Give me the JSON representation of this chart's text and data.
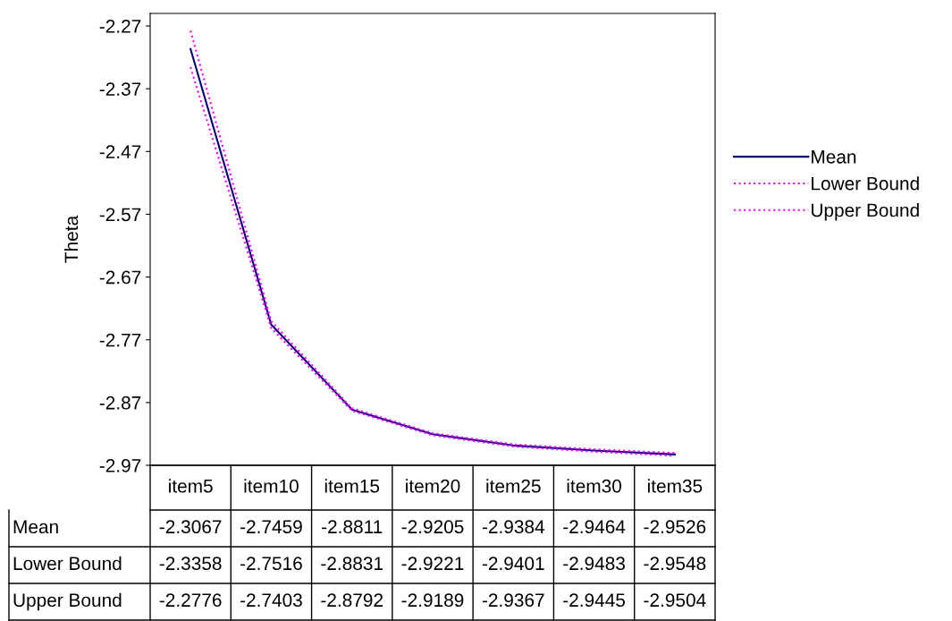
{
  "chart_data": {
    "type": "line",
    "ylabel": "Theta",
    "categories": [
      "item5",
      "item10",
      "item15",
      "item20",
      "item25",
      "item30",
      "item35"
    ],
    "series": [
      {
        "name": "Mean",
        "color": "#000080",
        "line_style": "solid",
        "values": [
          -2.3067,
          -2.7459,
          -2.8811,
          -2.9205,
          -2.9384,
          -2.9464,
          -2.9526
        ]
      },
      {
        "name": "Lower Bound",
        "color": "#ff00ff",
        "line_style": "dotted",
        "values": [
          -2.3358,
          -2.7516,
          -2.8831,
          -2.9221,
          -2.9401,
          -2.9483,
          -2.9548
        ]
      },
      {
        "name": "Upper Bound",
        "color": "#ff00ff",
        "line_style": "dotted",
        "values": [
          -2.2776,
          -2.7403,
          -2.8792,
          -2.9189,
          -2.9367,
          -2.9445,
          -2.9504
        ]
      }
    ],
    "ylim": [
      -2.97,
      -2.25
    ],
    "yticks": [
      -2.97,
      -2.87,
      -2.77,
      -2.67,
      -2.57,
      -2.47,
      -2.37,
      -2.27
    ],
    "grid": false,
    "legend": "right",
    "marker": "none",
    "data_labels": true
  }
}
